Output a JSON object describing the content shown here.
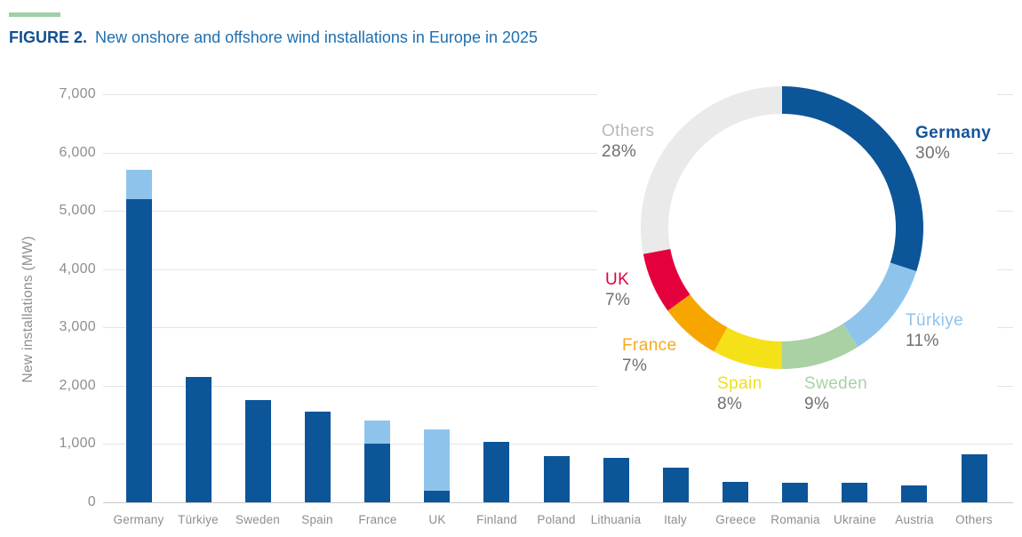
{
  "figure": {
    "label": "FIGURE 2.",
    "title": "New onshore and offshore wind installations in Europe in 2025"
  },
  "colors": {
    "onshore_blue": "#0d5599",
    "offshore_blue": "#8ec4ec",
    "accent_green": "#9fd0a6",
    "grid_gray": "#e4e4e4",
    "axis_text_gray": "#8e8e8e",
    "pct_text_gray": "#6f6f6f"
  },
  "chart_data": [
    {
      "type": "bar",
      "stacked": true,
      "ylabel": "New installations (MW)",
      "ylim": [
        0,
        7000
      ],
      "grid": true,
      "legend": "none",
      "ytick_labels": [
        "0",
        "1,000",
        "2,000",
        "3,000",
        "4,000",
        "5,000",
        "6,000",
        "7,000"
      ],
      "categories": [
        "Germany",
        "Türkiye",
        "Sweden",
        "Spain",
        "France",
        "UK",
        "Finland",
        "Poland",
        "Lithuania",
        "Italy",
        "Greece",
        "Romania",
        "Ukraine",
        "Austria",
        "Others"
      ],
      "series": [
        {
          "name": "Onshore",
          "color": "#0d5599",
          "values": [
            5200,
            2150,
            1750,
            1560,
            1000,
            200,
            1030,
            800,
            760,
            590,
            350,
            340,
            330,
            290,
            830
          ]
        },
        {
          "name": "Offshore",
          "color": "#8ec4ec",
          "values": [
            500,
            0,
            0,
            0,
            400,
            0,
            0,
            0,
            0,
            0,
            0,
            0,
            0,
            0,
            0
          ]
        }
      ],
      "offshore_override": {
        "UK": 1050
      },
      "note_totals_mw": {
        "Germany": 5700,
        "France": 1400,
        "UK": 1250
      }
    },
    {
      "type": "pie",
      "subtype": "donut",
      "start_angle_deg": 0,
      "direction": "clockwise",
      "inner_radius_ratio": 0.805,
      "slices": [
        {
          "label": "Germany",
          "pct": 30,
          "pct_label": "30%",
          "color": "#0d5599",
          "label_color": "#15549b"
        },
        {
          "label": "Türkiye",
          "pct": 11,
          "pct_label": "11%",
          "color": "#8ec4ec",
          "label_color": "#8ec4ec"
        },
        {
          "label": "Sweden",
          "pct": 9,
          "pct_label": "9%",
          "color": "#a9d1a4",
          "label_color": "#a9d1a4"
        },
        {
          "label": "Spain",
          "pct": 8,
          "pct_label": "8%",
          "color": "#f4e118",
          "label_color": "#f0df1e"
        },
        {
          "label": "France",
          "pct": 7,
          "pct_label": "7%",
          "color": "#f7a600",
          "label_color": "#f8a91e"
        },
        {
          "label": "UK",
          "pct": 7,
          "pct_label": "7%",
          "color": "#e4003c",
          "label_color": "#e4003c"
        },
        {
          "label": "Others",
          "pct": 28,
          "pct_label": "28%",
          "color": "#eaeaea",
          "label_color": "#b9b9b9"
        }
      ]
    }
  ]
}
